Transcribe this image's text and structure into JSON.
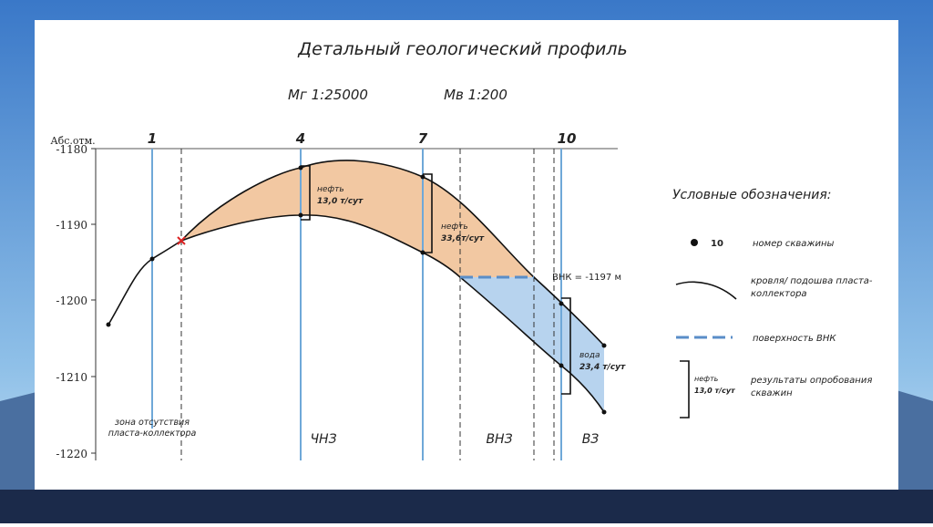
{
  "title": "Детальный геологический профиль",
  "scales": [
    "Мг 1:25000",
    "Мв 1:200"
  ],
  "axis": {
    "label": "Абс.отм.",
    "ticks": [
      "-1180",
      "-1190",
      "-1200",
      "-1210",
      "-1220"
    ]
  },
  "wells": [
    "1",
    "4",
    "7",
    "10"
  ],
  "zones": [
    "зона отсутствия пласта-коллектора",
    "ЧНЗ",
    "ВНЗ",
    "ВЗ"
  ],
  "annotations": {
    "well4": [
      "нефть",
      "13,0 т/сут"
    ],
    "well7": [
      "нефть",
      "33,6т/сут"
    ],
    "well10": [
      "вода",
      "23,4 т/сут"
    ],
    "vnk": "ВНК = -1197 м"
  },
  "legend": {
    "title": "Условные обозначения:",
    "items": [
      {
        "sample": "10",
        "label": "номер скважины"
      },
      {
        "label": "кровля/ подошва пласта-коллектора"
      },
      {
        "label": "поверхность ВНК"
      },
      {
        "sample": [
          "нефть",
          "13,0 т/сут"
        ],
        "label": "результаты опробования скважин"
      }
    ]
  }
}
